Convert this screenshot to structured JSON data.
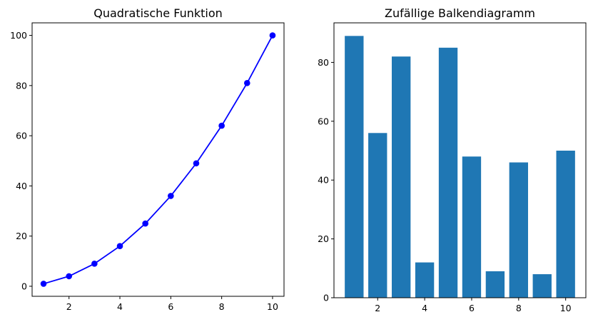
{
  "colors": {
    "line": "#0000ff",
    "bar": "#1f77b4",
    "axes": "#000000",
    "background": "#ffffff"
  },
  "chart_data": [
    {
      "type": "line",
      "title": "Quadratische Funktion",
      "xlabel": "",
      "ylabel": "",
      "x": [
        1,
        2,
        3,
        4,
        5,
        6,
        7,
        8,
        9,
        10
      ],
      "series": [
        {
          "values": [
            1,
            4,
            9,
            16,
            25,
            36,
            49,
            64,
            81,
            100
          ]
        }
      ],
      "marker": "circle",
      "xlim": [
        0.55,
        10.45
      ],
      "ylim": [
        -4,
        105
      ],
      "xticks": [
        2,
        4,
        6,
        8,
        10
      ],
      "yticks": [
        0,
        20,
        40,
        60,
        80,
        100
      ],
      "grid": false,
      "legend": "none"
    },
    {
      "type": "bar",
      "title": "Zufällige Balkendiagramm",
      "xlabel": "",
      "ylabel": "",
      "x": [
        1,
        2,
        3,
        4,
        5,
        6,
        7,
        8,
        9,
        10
      ],
      "values": [
        89,
        56,
        82,
        12,
        85,
        48,
        9,
        46,
        8,
        50
      ],
      "xlim": [
        0.14,
        10.86
      ],
      "ylim": [
        0,
        93.45
      ],
      "xticks": [
        2,
        4,
        6,
        8,
        10
      ],
      "yticks": [
        0,
        20,
        40,
        60,
        80
      ],
      "grid": false,
      "legend": "none"
    }
  ]
}
